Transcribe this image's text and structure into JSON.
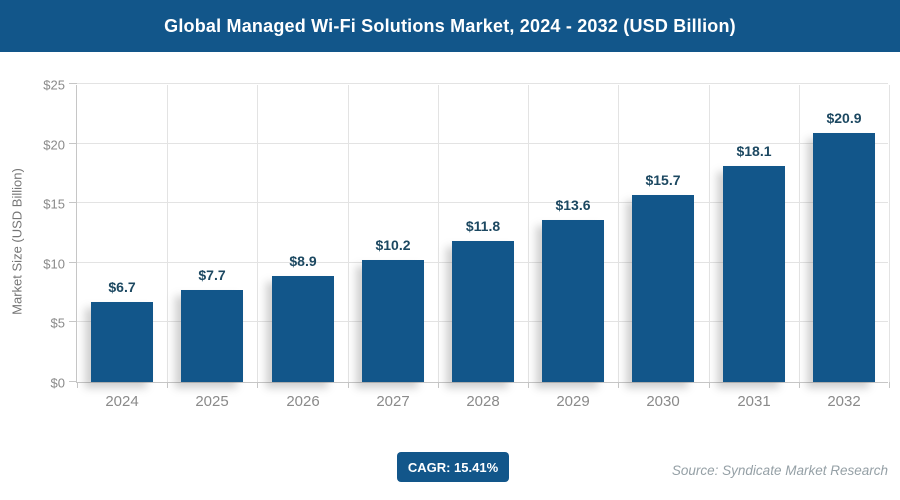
{
  "header": {
    "title": "Global Managed Wi-Fi Solutions Market, 2024 - 2032 (USD Billion)"
  },
  "chart_data": {
    "type": "bar",
    "title": "Global Managed Wi-Fi Solutions Market, 2024 - 2032 (USD Billion)",
    "categories": [
      "2024",
      "2025",
      "2026",
      "2027",
      "2028",
      "2029",
      "2030",
      "2031",
      "2032"
    ],
    "values": [
      6.7,
      7.7,
      8.9,
      10.2,
      11.8,
      13.6,
      15.7,
      18.1,
      20.9
    ],
    "value_labels": [
      "$6.7",
      "$7.7",
      "$8.9",
      "$10.2",
      "$11.8",
      "$13.6",
      "$15.7",
      "$18.1",
      "$20.9"
    ],
    "xlabel": "",
    "ylabel": "Market Size (USD Billion)",
    "ylim": [
      0,
      25
    ],
    "ytick_step": 5,
    "ytick_labels": [
      "$0",
      "$5",
      "$10",
      "$15",
      "$20",
      "$25"
    ],
    "grid": true,
    "legend": "none",
    "bar_color": "#12568a",
    "value_label_color": "#1c4861"
  },
  "footer": {
    "cagr_label": "CAGR: 15.41%",
    "source": "Source: Syndicate Market Research"
  },
  "colors": {
    "primary_blue": "#12568a",
    "axis_text": "#8a8a8a",
    "gridline": "#e3e3e3",
    "background": "#ffffff"
  }
}
